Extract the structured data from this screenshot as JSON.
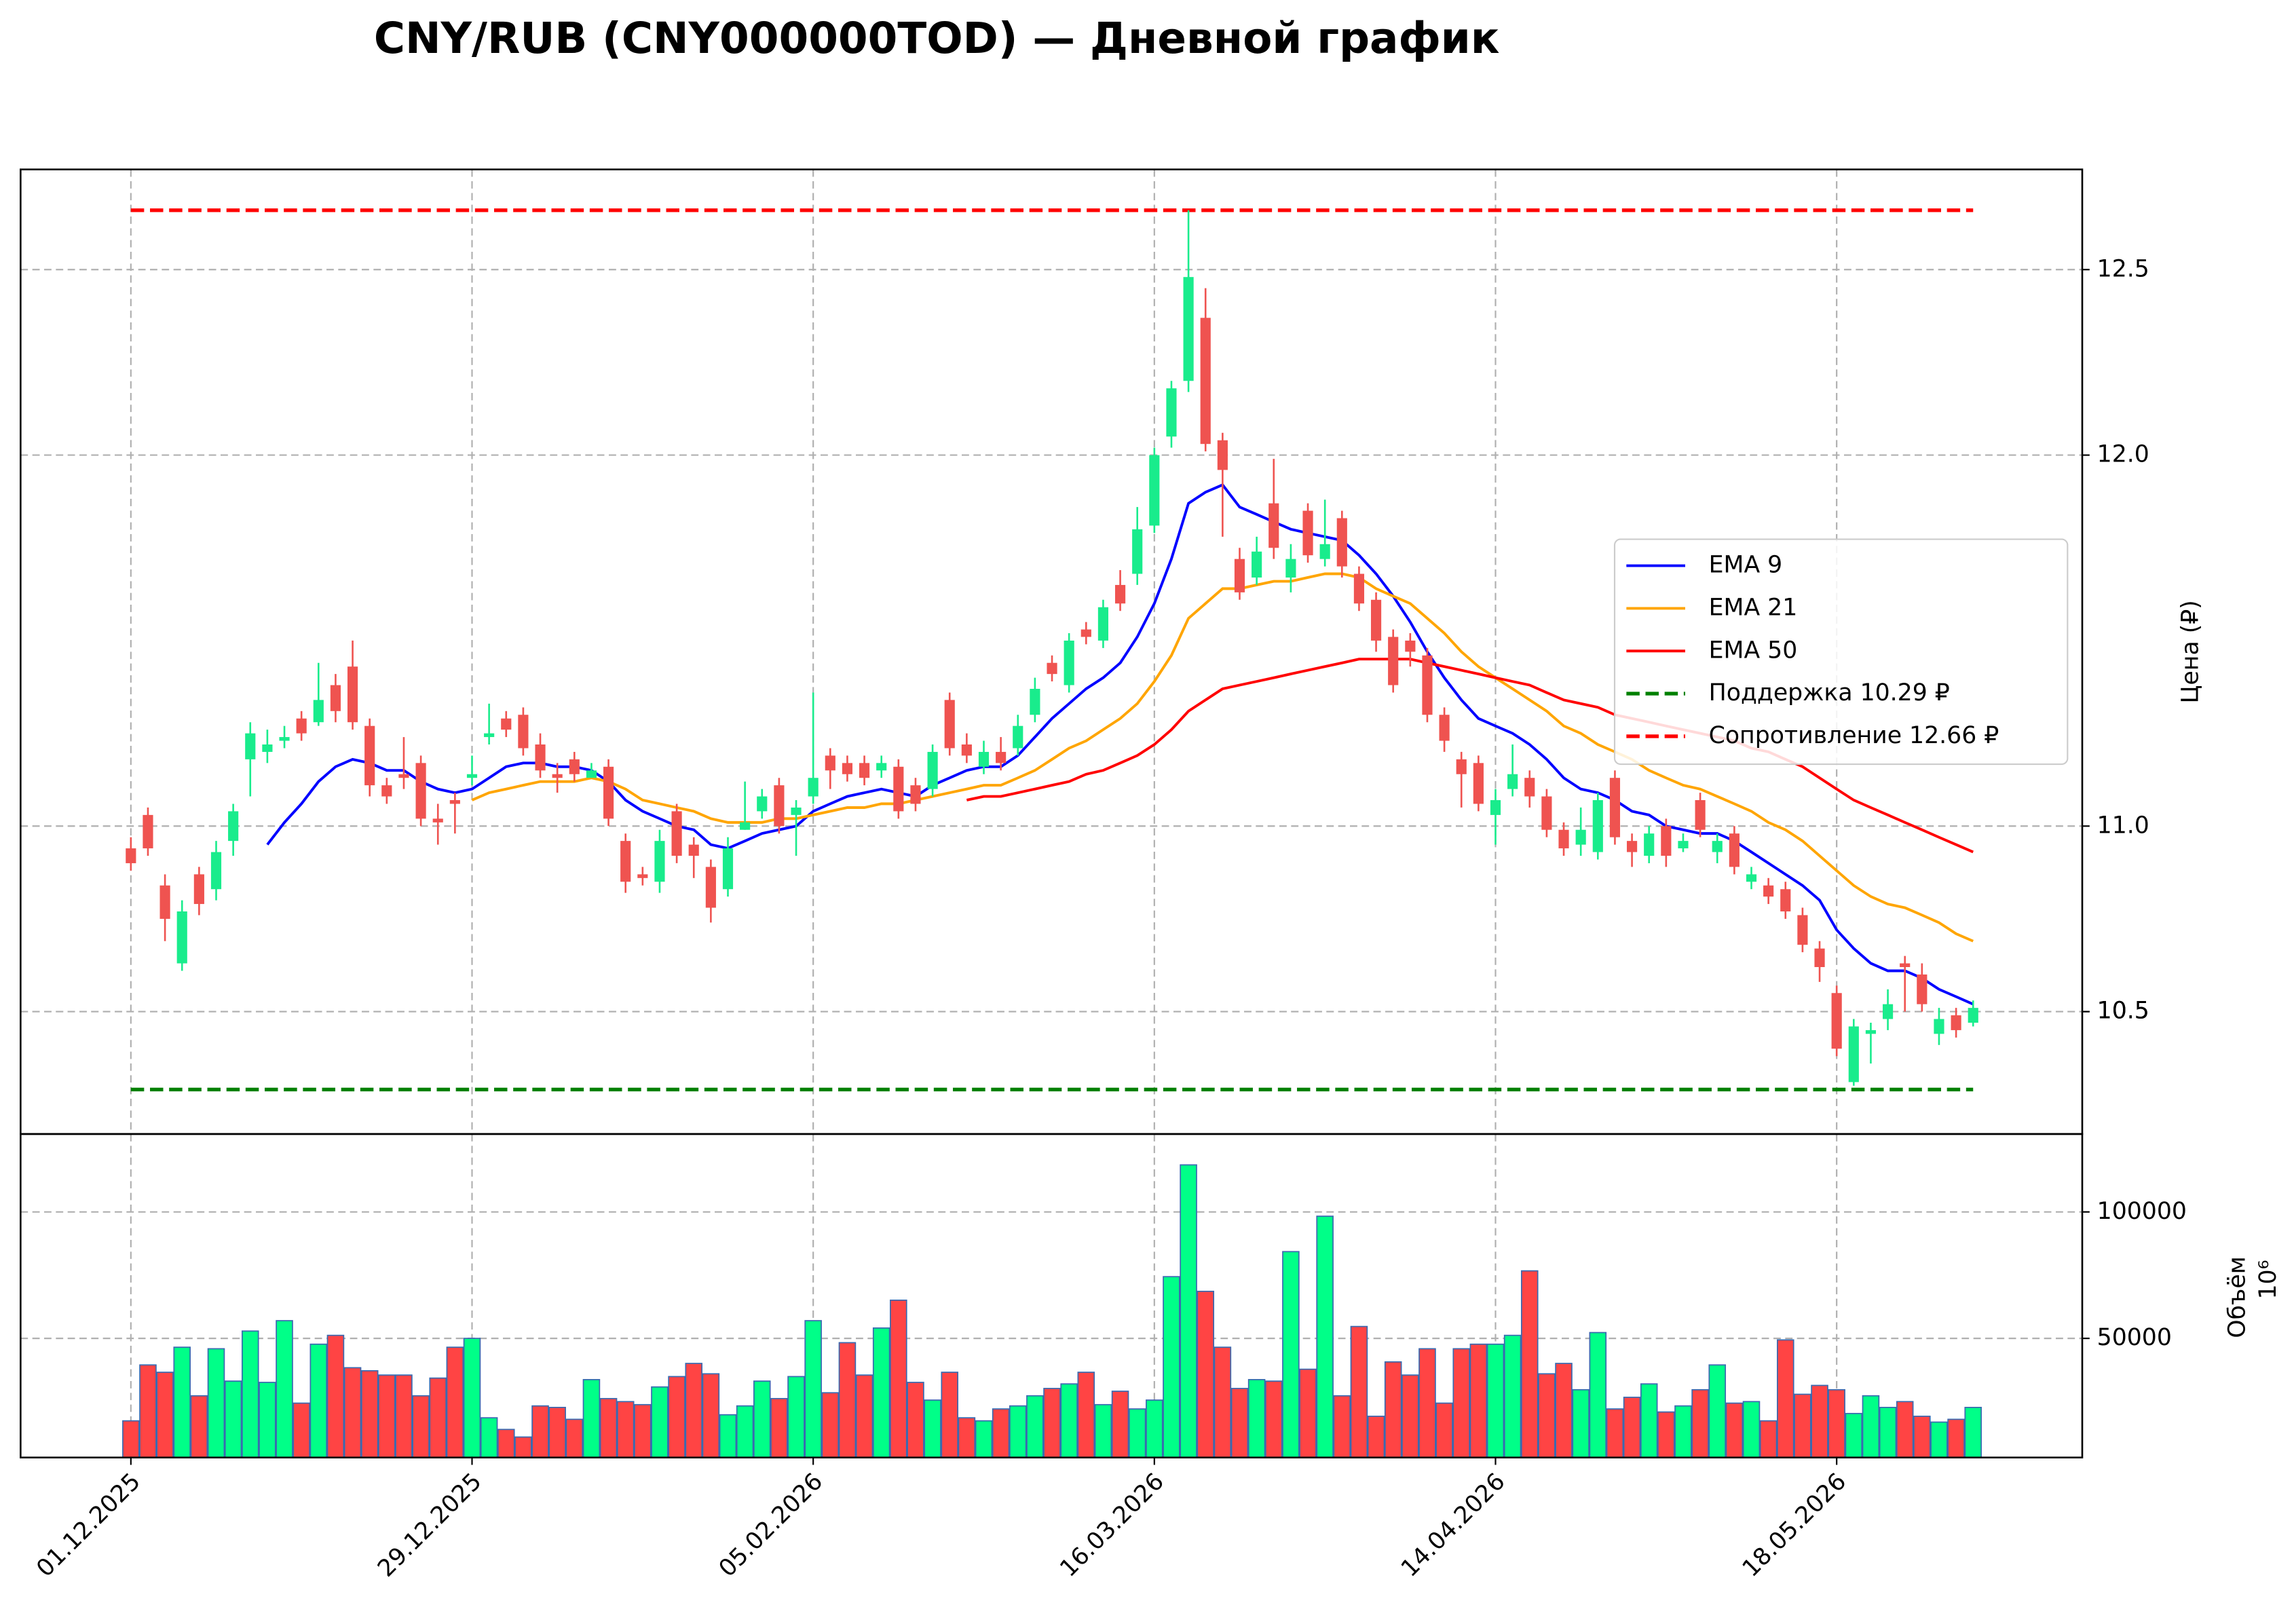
{
  "chart_data": {
    "type": "candlestick",
    "title": "CNY/RUB (CNY000000TOD) — Дневной график",
    "ylabel": "Цена (₽)",
    "categories": [
      "01.12.2025",
      null,
      null,
      null,
      null,
      null,
      null,
      null,
      null,
      null,
      null,
      null,
      null,
      null,
      null,
      null,
      null,
      null,
      null,
      null,
      "29.12.2025",
      null,
      null,
      null,
      null,
      null,
      null,
      null,
      null,
      null,
      null,
      null,
      null,
      null,
      null,
      null,
      null,
      null,
      null,
      null,
      "05.02.2026",
      null,
      null,
      null,
      null,
      null,
      null,
      null,
      null,
      null,
      null,
      null,
      null,
      null,
      null,
      null,
      null,
      null,
      null,
      null,
      "16.03.2026",
      null,
      null,
      null,
      null,
      null,
      null,
      null,
      null,
      null,
      null,
      null,
      null,
      null,
      null,
      null,
      null,
      null,
      null,
      null,
      "14.04.2026",
      null,
      null,
      null,
      null,
      null,
      null,
      null,
      null,
      null,
      null,
      null,
      null,
      null,
      null,
      null,
      null,
      null,
      null,
      null,
      "18.05.2026",
      null,
      null,
      null,
      null,
      null,
      null,
      null,
      null
    ],
    "open": [
      10.94,
      11.03,
      10.84,
      10.63,
      10.87,
      10.83,
      10.96,
      11.18,
      11.2,
      11.23,
      11.29,
      11.28,
      11.38,
      11.43,
      11.27,
      11.11,
      11.14,
      11.17,
      11.02,
      11.07,
      11.13,
      11.24,
      11.29,
      11.3,
      11.22,
      11.14,
      11.18,
      11.13,
      11.16,
      10.96,
      10.87,
      10.85,
      11.04,
      10.95,
      10.89,
      10.83,
      10.99,
      11.04,
      11.11,
      11.03,
      11.08,
      11.19,
      11.17,
      11.17,
      11.15,
      11.16,
      11.11,
      11.1,
      11.34,
      11.22,
      11.16,
      11.2,
      11.21,
      11.3,
      11.44,
      11.38,
      11.53,
      11.5,
      11.65,
      11.68,
      11.81,
      12.05,
      12.2,
      12.37,
      12.04,
      11.72,
      11.67,
      11.87,
      11.67,
      11.85,
      11.72,
      11.83,
      11.68,
      11.61,
      11.51,
      11.5,
      11.46,
      11.3,
      11.18,
      11.17,
      11.03,
      11.1,
      11.13,
      11.08,
      10.99,
      10.95,
      10.93,
      11.13,
      10.96,
      10.92,
      11.0,
      10.94,
      11.07,
      10.93,
      10.98,
      10.85,
      10.84,
      10.83,
      10.76,
      10.67,
      10.55,
      10.31,
      10.44,
      10.48,
      10.63,
      10.6,
      10.44,
      10.49,
      10.47
    ],
    "high": [
      10.97,
      11.05,
      10.87,
      10.8,
      10.89,
      10.96,
      11.06,
      11.28,
      11.26,
      11.27,
      11.31,
      11.44,
      11.41,
      11.5,
      11.29,
      11.13,
      11.24,
      11.19,
      11.06,
      11.09,
      11.19,
      11.33,
      11.31,
      11.32,
      11.25,
      11.17,
      11.2,
      11.17,
      11.18,
      10.98,
      10.89,
      10.99,
      11.06,
      10.97,
      10.91,
      10.97,
      11.12,
      11.1,
      11.13,
      11.07,
      11.36,
      11.21,
      11.19,
      11.19,
      11.19,
      11.18,
      11.13,
      11.22,
      11.36,
      11.25,
      11.23,
      11.24,
      11.3,
      11.4,
      11.46,
      11.52,
      11.55,
      11.61,
      11.69,
      11.86,
      12.02,
      12.2,
      12.66,
      12.45,
      12.06,
      11.75,
      11.78,
      11.99,
      11.76,
      11.87,
      11.88,
      11.85,
      11.7,
      11.63,
      11.53,
      11.52,
      11.48,
      11.32,
      11.2,
      11.19,
      11.1,
      11.22,
      11.15,
      11.1,
      11.01,
      11.05,
      11.09,
      11.15,
      10.98,
      11.0,
      11.02,
      10.98,
      11.09,
      10.98,
      11.0,
      10.89,
      10.86,
      10.85,
      10.78,
      10.69,
      10.57,
      10.48,
      10.47,
      10.56,
      10.65,
      10.63,
      10.51,
      10.51,
      10.53
    ],
    "low": [
      10.88,
      10.92,
      10.69,
      10.61,
      10.76,
      10.8,
      10.92,
      11.08,
      11.17,
      11.21,
      11.23,
      11.27,
      11.28,
      11.26,
      11.08,
      11.06,
      11.1,
      11.0,
      10.95,
      10.98,
      11.11,
      11.22,
      11.24,
      11.19,
      11.13,
      11.09,
      11.12,
      11.13,
      11.0,
      10.82,
      10.84,
      10.82,
      10.9,
      10.86,
      10.74,
      10.81,
      10.99,
      11.02,
      10.98,
      10.92,
      11.06,
      11.1,
      11.12,
      11.11,
      11.13,
      11.02,
      11.04,
      11.08,
      11.19,
      11.17,
      11.14,
      11.15,
      11.19,
      11.28,
      11.39,
      11.36,
      11.49,
      11.48,
      11.58,
      11.65,
      11.79,
      12.02,
      12.17,
      12.01,
      11.78,
      11.61,
      11.65,
      11.72,
      11.63,
      11.71,
      11.7,
      11.67,
      11.58,
      11.47,
      11.36,
      11.43,
      11.28,
      11.2,
      11.05,
      11.04,
      10.95,
      11.08,
      11.05,
      10.97,
      10.92,
      10.92,
      10.91,
      10.95,
      10.89,
      10.9,
      10.89,
      10.93,
      10.97,
      10.9,
      10.87,
      10.83,
      10.79,
      10.75,
      10.66,
      10.58,
      10.38,
      10.3,
      10.36,
      10.45,
      10.5,
      10.5,
      10.41,
      10.43,
      10.46
    ],
    "close": [
      10.9,
      10.94,
      10.75,
      10.77,
      10.79,
      10.93,
      11.04,
      11.25,
      11.22,
      11.24,
      11.25,
      11.34,
      11.31,
      11.28,
      11.11,
      11.08,
      11.13,
      11.02,
      11.01,
      11.06,
      11.14,
      11.25,
      11.26,
      11.21,
      11.15,
      11.13,
      11.14,
      11.15,
      11.02,
      10.85,
      10.86,
      10.96,
      10.92,
      10.92,
      10.78,
      10.94,
      11.01,
      11.08,
      11.0,
      11.05,
      11.13,
      11.15,
      11.14,
      11.13,
      11.17,
      11.04,
      11.06,
      11.2,
      11.21,
      11.19,
      11.2,
      11.17,
      11.27,
      11.37,
      11.41,
      11.5,
      11.51,
      11.59,
      11.6,
      11.8,
      12.0,
      12.18,
      12.48,
      12.03,
      11.96,
      11.63,
      11.74,
      11.75,
      11.72,
      11.73,
      11.76,
      11.7,
      11.6,
      11.5,
      11.38,
      11.47,
      11.3,
      11.23,
      11.14,
      11.06,
      11.07,
      11.14,
      11.08,
      10.99,
      10.94,
      10.99,
      11.07,
      10.97,
      10.93,
      10.98,
      10.92,
      10.96,
      10.99,
      10.96,
      10.89,
      10.87,
      10.81,
      10.77,
      10.68,
      10.62,
      10.4,
      10.46,
      10.45,
      10.52,
      10.62,
      10.52,
      10.48,
      10.45,
      10.51
    ],
    "up_color": "#19ec8c",
    "down_color": "#ef5350",
    "ylim": [
      10.17,
      12.77
    ],
    "yticks": [
      10.5,
      {
        "value": 11,
        "label": "11.0"
      },
      10.5,
      {
        "value": 12,
        "label": "12.0"
      },
      12.5
    ],
    "grid": true,
    "legend": "center right",
    "series": [
      {
        "name": "EMA 9",
        "color": "#0000ff",
        "values": [
          null,
          null,
          null,
          null,
          null,
          null,
          null,
          null,
          10.95,
          11.01,
          11.06,
          11.12,
          11.16,
          11.18,
          11.17,
          11.15,
          11.15,
          11.12,
          11.1,
          11.09,
          11.1,
          11.13,
          11.16,
          11.17,
          11.17,
          11.16,
          11.16,
          11.15,
          11.12,
          11.07,
          11.04,
          11.02,
          11.0,
          10.99,
          10.95,
          10.94,
          10.96,
          10.98,
          10.99,
          11.0,
          11.04,
          11.06,
          11.08,
          11.09,
          11.1,
          11.09,
          11.08,
          11.11,
          11.13,
          11.15,
          11.16,
          11.16,
          11.19,
          11.24,
          11.29,
          11.33,
          11.37,
          11.4,
          11.44,
          11.51,
          11.6,
          11.72,
          11.87,
          11.9,
          11.92,
          11.86,
          11.84,
          11.82,
          11.8,
          11.79,
          11.78,
          11.77,
          11.73,
          11.68,
          11.62,
          11.55,
          11.47,
          11.4,
          11.34,
          11.29,
          11.27,
          11.25,
          11.22,
          11.18,
          11.13,
          11.1,
          11.09,
          11.07,
          11.04,
          11.03,
          11.0,
          10.99,
          10.98,
          10.98,
          10.96,
          10.93,
          10.9,
          10.87,
          10.84,
          10.8,
          10.72,
          10.67,
          10.63,
          10.61,
          10.61,
          10.59,
          10.56,
          10.54,
          10.52
        ]
      },
      {
        "name": "EMA 21",
        "color": "#ffa500",
        "values": [
          null,
          null,
          null,
          null,
          null,
          null,
          null,
          null,
          null,
          null,
          null,
          null,
          null,
          null,
          null,
          null,
          null,
          null,
          null,
          null,
          11.07,
          11.09,
          11.1,
          11.11,
          11.12,
          11.12,
          11.12,
          11.13,
          11.12,
          11.1,
          11.07,
          11.06,
          11.05,
          11.04,
          11.02,
          11.01,
          11.01,
          11.01,
          11.02,
          11.02,
          11.03,
          11.04,
          11.05,
          11.05,
          11.06,
          11.06,
          11.07,
          11.08,
          11.09,
          11.1,
          11.11,
          11.11,
          11.13,
          11.15,
          11.18,
          11.21,
          11.23,
          11.26,
          11.29,
          11.33,
          11.39,
          11.46,
          11.56,
          11.6,
          11.64,
          11.64,
          11.65,
          11.66,
          11.66,
          11.67,
          11.68,
          11.68,
          11.67,
          11.64,
          11.62,
          11.6,
          11.56,
          11.52,
          11.47,
          11.43,
          11.4,
          11.37,
          11.34,
          11.31,
          11.27,
          11.25,
          11.22,
          11.2,
          11.18,
          11.15,
          11.13,
          11.11,
          11.1,
          11.08,
          11.06,
          11.04,
          11.01,
          10.99,
          10.96,
          10.92,
          10.88,
          10.84,
          10.81,
          10.79,
          10.78,
          10.76,
          10.74,
          10.71,
          10.69
        ]
      },
      {
        "name": "EMA 50",
        "color": "#ff0000",
        "values": [
          null,
          null,
          null,
          null,
          null,
          null,
          null,
          null,
          null,
          null,
          null,
          null,
          null,
          null,
          null,
          null,
          null,
          null,
          null,
          null,
          null,
          null,
          null,
          null,
          null,
          null,
          null,
          null,
          null,
          null,
          null,
          null,
          null,
          null,
          null,
          null,
          null,
          null,
          null,
          null,
          null,
          null,
          null,
          null,
          null,
          null,
          null,
          null,
          null,
          11.07,
          11.08,
          11.08,
          11.09,
          11.1,
          11.11,
          11.12,
          11.14,
          11.15,
          11.17,
          11.19,
          11.22,
          11.26,
          11.31,
          11.34,
          11.37,
          11.38,
          11.39,
          11.4,
          11.41,
          11.42,
          11.43,
          11.44,
          11.45,
          11.45,
          11.45,
          11.45,
          11.44,
          11.43,
          11.42,
          11.41,
          11.4,
          11.39,
          11.38,
          11.36,
          11.34,
          11.33,
          11.32,
          11.3,
          11.29,
          11.28,
          11.27,
          11.26,
          11.25,
          11.24,
          11.23,
          11.21,
          11.2,
          11.18,
          11.16,
          11.13,
          11.1,
          11.07,
          11.05,
          11.03,
          11.01,
          10.99,
          10.97,
          10.95,
          10.93
        ]
      }
    ],
    "hlines": [
      {
        "name": "Поддержка 10.29 ₽",
        "value": 10.29,
        "color": "#008000"
      },
      {
        "name": "Сопротивление 12.66 ₽",
        "value": 12.66,
        "color": "#ff0000"
      }
    ],
    "volume": {
      "ylabel": "Объём",
      "offset_label": "10⁶",
      "edge_color": "#3a6ab0",
      "up_color": "#00ff88",
      "down_color": "#ff4444",
      "values": [
        17400,
        39500,
        36600,
        46500,
        27300,
        45900,
        33100,
        52900,
        32600,
        57000,
        24400,
        47700,
        51200,
        38400,
        37200,
        35500,
        35500,
        27300,
        34300,
        46500,
        50000,
        18600,
        14000,
        11000,
        23300,
        22700,
        18000,
        33700,
        26200,
        25000,
        23800,
        30800,
        34900,
        40100,
        36000,
        19800,
        23300,
        33100,
        26200,
        34900,
        57000,
        28500,
        48300,
        35500,
        54100,
        65100,
        32600,
        25600,
        36600,
        18600,
        17400,
        22100,
        23300,
        27300,
        30200,
        32000,
        36600,
        23800,
        29100,
        22100,
        25600,
        74400,
        118600,
        68600,
        46500,
        30200,
        33700,
        33100,
        84300,
        37800,
        98300,
        27300,
        54700,
        19200,
        40700,
        35500,
        45900,
        24400,
        45900,
        47700,
        47700,
        51200,
        76700,
        36000,
        40100,
        29700,
        52300,
        22100,
        26700,
        32000,
        20900,
        23300,
        29700,
        39500,
        24400,
        25000,
        17400,
        49400,
        27900,
        31400,
        29700,
        20300,
        27300,
        22700,
        25000,
        19200,
        16900,
        18000,
        22700
      ],
      "ylim": [
        2900,
        130800
      ],
      "yticks": [
        50000,
        100000
      ]
    }
  }
}
